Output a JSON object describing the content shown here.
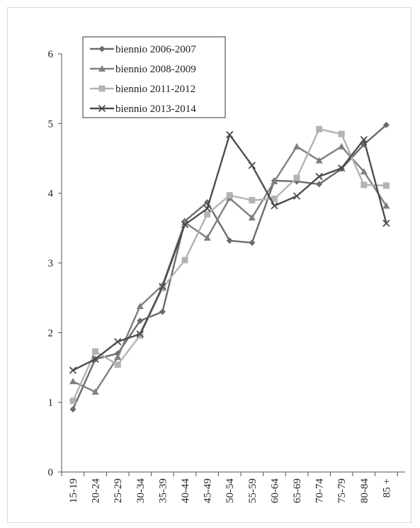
{
  "chart_data": {
    "type": "line",
    "title": "",
    "xlabel": "",
    "ylabel": "",
    "ylim": [
      0,
      6
    ],
    "yticks": [
      "0",
      "1",
      "2",
      "3",
      "4",
      "5",
      "6"
    ],
    "categories": [
      "15-19",
      "20-24",
      "25-29",
      "30-34",
      "35-39",
      "40-44",
      "45-49",
      "50-54",
      "55-59",
      "60-64",
      "65-69",
      "70-74",
      "75-79",
      "80-84",
      "85 +"
    ],
    "grid": false,
    "legend_position": "top-left",
    "series": [
      {
        "name": "biennio 2006-2007",
        "color": "#6b6b6b",
        "marker": "diamond",
        "values": [
          0.9,
          1.62,
          1.7,
          2.17,
          2.3,
          3.6,
          3.87,
          3.32,
          3.29,
          4.18,
          4.17,
          4.13,
          4.35,
          4.7,
          4.98
        ]
      },
      {
        "name": "biennio 2008-2009",
        "color": "#7f7f7f",
        "marker": "triangle",
        "values": [
          1.3,
          1.15,
          1.65,
          2.38,
          2.68,
          3.58,
          3.36,
          3.93,
          3.65,
          4.17,
          4.67,
          4.47,
          4.67,
          4.31,
          3.82
        ]
      },
      {
        "name": "biennio 2011-2012",
        "color": "#b3b3b3",
        "marker": "square",
        "values": [
          1.02,
          1.73,
          1.54,
          1.96,
          2.64,
          3.04,
          3.7,
          3.97,
          3.9,
          3.92,
          4.22,
          4.92,
          4.85,
          4.12,
          4.11
        ]
      },
      {
        "name": "biennio 2013-2014",
        "color": "#4d4d4d",
        "marker": "x",
        "values": [
          1.46,
          1.62,
          1.87,
          1.98,
          2.66,
          3.55,
          3.78,
          4.84,
          4.4,
          3.82,
          3.96,
          4.24,
          4.36,
          4.77,
          3.57
        ]
      }
    ]
  }
}
